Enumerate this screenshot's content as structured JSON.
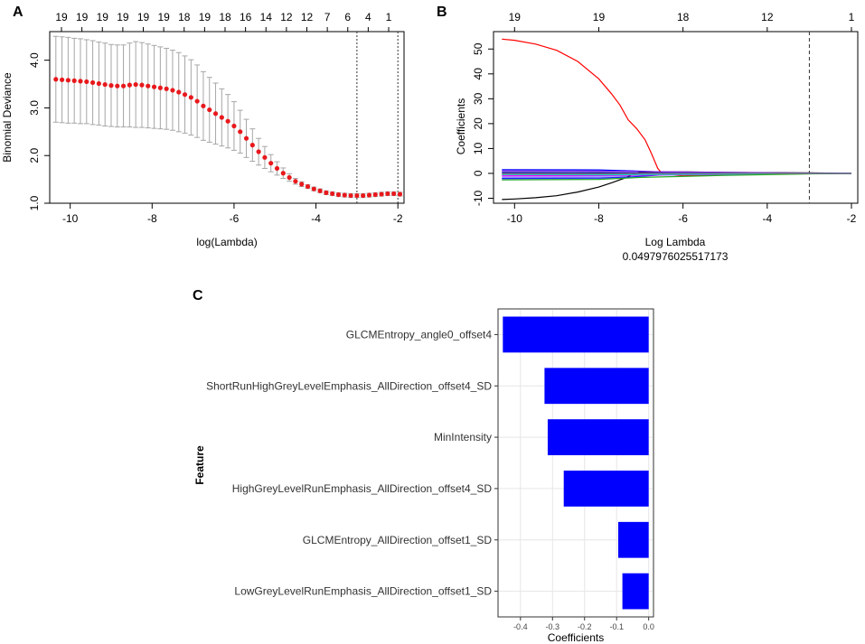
{
  "chart_data": [
    {
      "panel_label": "A",
      "type": "line",
      "subtype": "cross-validation error plot with error bars",
      "xlabel": "log(Lambda)",
      "ylabel": "Binomial Deviance",
      "xlim": [
        -10.5,
        -1.85
      ],
      "ylim": [
        1.0,
        4.6
      ],
      "x_ticks": [
        -10,
        -8,
        -6,
        -4,
        -2
      ],
      "y_ticks": [
        1.0,
        2.0,
        3.0,
        4.0
      ],
      "x_tick_labels": [
        "-10",
        "-8",
        "-6",
        "-4",
        "-2"
      ],
      "y_tick_labels": [
        "1.0",
        "2.0",
        "3.0",
        "4.0"
      ],
      "top_axis_labels": [
        "19",
        "19",
        "19",
        "19",
        "19",
        "19",
        "18",
        "19",
        "18",
        "16",
        "14",
        "12",
        "12",
        "7",
        "6",
        "4",
        "1"
      ],
      "top_axis_positions": [
        -10.1,
        -9.4,
        -8.8,
        -8.1,
        -7.5,
        -6.9,
        -6.3,
        -5.7,
        -5.1,
        -4.6,
        -4.0,
        -3.4,
        -2.8,
        -2.2,
        -1.7,
        -1.3,
        -0.8
      ],
      "vlines": [
        -3.0,
        -2.0
      ],
      "x": [
        -10.35,
        -10.2,
        -10.05,
        -9.9,
        -9.75,
        -9.6,
        -9.45,
        -9.3,
        -9.15,
        -9.0,
        -8.85,
        -8.7,
        -8.55,
        -8.4,
        -8.25,
        -8.1,
        -7.95,
        -7.8,
        -7.65,
        -7.5,
        -7.35,
        -7.2,
        -7.05,
        -6.9,
        -6.75,
        -6.6,
        -6.45,
        -6.3,
        -6.15,
        -6.0,
        -5.85,
        -5.7,
        -5.55,
        -5.4,
        -5.25,
        -5.1,
        -4.95,
        -4.8,
        -4.65,
        -4.5,
        -4.35,
        -4.2,
        -4.05,
        -3.9,
        -3.75,
        -3.6,
        -3.45,
        -3.3,
        -3.15,
        -3.0,
        -2.85,
        -2.7,
        -2.55,
        -2.4,
        -2.25,
        -2.1,
        -1.95
      ],
      "y": [
        3.6,
        3.59,
        3.58,
        3.57,
        3.56,
        3.55,
        3.53,
        3.51,
        3.49,
        3.47,
        3.46,
        3.46,
        3.48,
        3.49,
        3.48,
        3.46,
        3.44,
        3.42,
        3.4,
        3.37,
        3.33,
        3.28,
        3.22,
        3.14,
        3.04,
        2.96,
        2.88,
        2.8,
        2.72,
        2.62,
        2.5,
        2.36,
        2.22,
        2.08,
        1.96,
        1.84,
        1.73,
        1.63,
        1.54,
        1.46,
        1.4,
        1.35,
        1.3,
        1.26,
        1.22,
        1.2,
        1.18,
        1.17,
        1.16,
        1.16,
        1.16,
        1.17,
        1.18,
        1.19,
        1.2,
        1.2,
        1.19
      ],
      "error": [
        0.9,
        0.9,
        0.9,
        0.89,
        0.89,
        0.88,
        0.88,
        0.87,
        0.87,
        0.86,
        0.86,
        0.86,
        0.88,
        0.9,
        0.89,
        0.88,
        0.87,
        0.86,
        0.85,
        0.84,
        0.83,
        0.81,
        0.79,
        0.76,
        0.72,
        0.68,
        0.64,
        0.6,
        0.56,
        0.51,
        0.45,
        0.4,
        0.34,
        0.28,
        0.23,
        0.18,
        0.14,
        0.11,
        0.08,
        0.06,
        0.05,
        0.04,
        0.04,
        0.04,
        0.04,
        0.04,
        0.04,
        0.04,
        0.04,
        0.04,
        0.04,
        0.04,
        0.04,
        0.04,
        0.04,
        0.04,
        0.04
      ],
      "colors": {
        "points": "#e8191c",
        "bars": "#a6a6a6",
        "vline": "#333333"
      }
    },
    {
      "panel_label": "B",
      "type": "line",
      "subtype": "coefficient path plot",
      "xlabel": "Log Lambda",
      "subtitle": "0.0497976025517173",
      "ylabel": "Coefficients",
      "xlim": [
        -10.5,
        -1.85
      ],
      "ylim": [
        -12,
        57
      ],
      "x_ticks": [
        -10,
        -8,
        -6,
        -4,
        -2
      ],
      "y_ticks": [
        -10,
        0,
        10,
        20,
        30,
        40,
        50
      ],
      "x_tick_labels": [
        "-10",
        "-8",
        "-6",
        "-4",
        "-2"
      ],
      "y_tick_labels": [
        "-10",
        "0",
        "10",
        "20",
        "30",
        "40",
        "50"
      ],
      "top_axis_labels": [
        "19",
        "19",
        "18",
        "12",
        "1"
      ],
      "top_axis_positions": [
        -10,
        -8,
        -6,
        -4,
        -2
      ],
      "vlines": [
        -3.0
      ],
      "series": [
        {
          "name": "red",
          "color": "#ff0000",
          "x": [
            -10.3,
            -10.0,
            -9.5,
            -9.0,
            -8.5,
            -8.0,
            -7.7,
            -7.5,
            -7.3,
            -7.1,
            -6.9,
            -6.75,
            -6.6,
            -6.5,
            -6.0,
            -5.0,
            -4.0,
            -3.0,
            -2.0
          ],
          "y": [
            54,
            53.5,
            52,
            49.5,
            45,
            38,
            32,
            27.5,
            21.5,
            18,
            13.5,
            8,
            2,
            0,
            -1,
            -0.6,
            -0.3,
            -0.1,
            0
          ]
        },
        {
          "name": "black",
          "color": "#000000",
          "x": [
            -10.3,
            -10.0,
            -9.5,
            -9.0,
            -8.5,
            -8.0,
            -7.7,
            -7.4,
            -7.2,
            -7.0,
            -6.0,
            -5.0,
            -3.0,
            -2.0
          ],
          "y": [
            -10.5,
            -10.3,
            -9.8,
            -9.0,
            -7.5,
            -5.5,
            -3.8,
            -2.0,
            -0.5,
            0.5,
            0.6,
            0.4,
            0.2,
            0
          ]
        },
        {
          "name": "blue",
          "color": "#0000ff",
          "x": [
            -10.3,
            -8.0,
            -7.2,
            -6.5,
            -5.0,
            -3.0,
            -2.0
          ],
          "y": [
            1.5,
            1.4,
            1.0,
            0.6,
            0.3,
            0.1,
            0
          ]
        },
        {
          "name": "blue-2",
          "color": "#1e1eff",
          "x": [
            -10.3,
            -8.0,
            -7.2,
            -6.5,
            -5.0,
            -3.0,
            -2.0
          ],
          "y": [
            -2.0,
            -1.9,
            -1.4,
            -0.6,
            -0.3,
            -0.1,
            0
          ]
        },
        {
          "name": "purple",
          "color": "#8a2be2",
          "x": [
            -10.3,
            -8.0,
            -7.0,
            -5.0,
            -3.0,
            -2.0
          ],
          "y": [
            1.0,
            0.9,
            0.7,
            0.4,
            0.1,
            0
          ]
        },
        {
          "name": "magenta",
          "color": "#ff00ff",
          "x": [
            -10.3,
            -8.0,
            -7.0,
            -5.0,
            -3.0,
            -2.0
          ],
          "y": [
            -1.0,
            -0.9,
            -0.7,
            -0.4,
            -0.1,
            0
          ]
        },
        {
          "name": "cyan",
          "color": "#00c8c8",
          "x": [
            -10.3,
            -8.0,
            -7.0,
            -5.0,
            -3.0,
            -2.0
          ],
          "y": [
            -0.5,
            -0.6,
            -0.5,
            -0.3,
            -0.1,
            0
          ]
        },
        {
          "name": "green",
          "color": "#22aa22",
          "x": [
            -10.3,
            -8.0,
            -7.0,
            -5.0,
            -3.0,
            -2.0
          ],
          "y": [
            -2.6,
            -2.4,
            -1.6,
            -0.8,
            -0.2,
            0
          ]
        },
        {
          "name": "navy",
          "color": "#000080",
          "x": [
            -10.3,
            -8.0,
            -7.0,
            -5.0,
            -3.0,
            -2.0
          ],
          "y": [
            0.3,
            0.2,
            0.1,
            0.05,
            0.0,
            0
          ]
        },
        {
          "name": "gray",
          "color": "#888888",
          "x": [
            -10.3,
            -8.0,
            -7.0,
            -5.0,
            -3.0,
            -2.0
          ],
          "y": [
            -0.2,
            -0.2,
            -0.1,
            0.0,
            0.0,
            0
          ]
        }
      ],
      "colors": {
        "vline": "#333333"
      }
    },
    {
      "panel_label": "C",
      "type": "bar",
      "orientation": "horizontal",
      "xlabel": "Coefficients",
      "ylabel": "Feature",
      "xlim": [
        -0.47,
        0.015
      ],
      "x_ticks": [
        -0.4,
        -0.3,
        -0.2,
        -0.1,
        0.0
      ],
      "x_tick_labels": [
        "-0.4",
        "-0.3",
        "-0.2",
        "-0.1",
        "0.0"
      ],
      "categories": [
        "GLCMEntropy_angle0_offset4",
        "ShortRunHighGreyLevelEmphasis_AllDirection_offset4_SD",
        "MinIntensity",
        "HighGreyLevelRunEmphasis_AllDirection_offset4_SD",
        "GLCMEntropy_AllDirection_offset1_SD",
        "LowGreyLevelRunEmphasis_AllDirection_offset1_SD"
      ],
      "values": [
        -0.455,
        -0.325,
        -0.315,
        -0.265,
        -0.095,
        -0.082
      ],
      "colors": {
        "bar": "#0000ff",
        "panel_bg": "#ffffff",
        "grid": "#e6e6e6",
        "border": "#333333"
      }
    }
  ]
}
